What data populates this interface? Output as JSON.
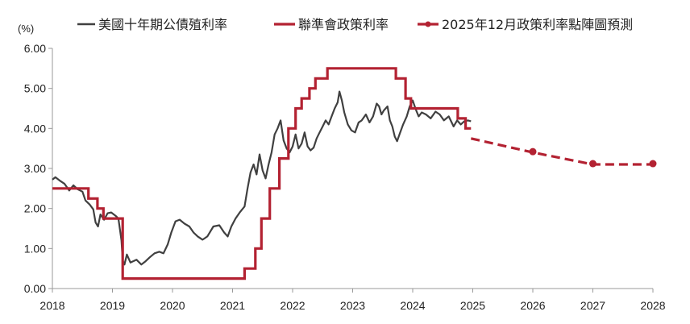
{
  "chart_data": {
    "type": "line",
    "ylabel": "(%)",
    "ylim": [
      0,
      6
    ],
    "xlim": [
      2018,
      2028
    ],
    "y_ticks": [
      "0.00",
      "1.00",
      "2.00",
      "3.00",
      "4.00",
      "5.00",
      "6.00"
    ],
    "x_ticks": [
      "2018",
      "2019",
      "2020",
      "2021",
      "2022",
      "2023",
      "2024",
      "2025",
      "2026",
      "2027",
      "2028"
    ],
    "legend_position": "top",
    "grid": false,
    "series": [
      {
        "name": "美國十年期公債殖利率",
        "style": "solid-thin",
        "color": "#404040",
        "points": [
          [
            2018.0,
            2.72
          ],
          [
            2018.05,
            2.78
          ],
          [
            2018.12,
            2.7
          ],
          [
            2018.2,
            2.62
          ],
          [
            2018.28,
            2.45
          ],
          [
            2018.35,
            2.58
          ],
          [
            2018.42,
            2.48
          ],
          [
            2018.5,
            2.42
          ],
          [
            2018.55,
            2.2
          ],
          [
            2018.62,
            2.1
          ],
          [
            2018.68,
            1.98
          ],
          [
            2018.72,
            1.65
          ],
          [
            2018.76,
            1.55
          ],
          [
            2018.8,
            1.85
          ],
          [
            2018.86,
            1.72
          ],
          [
            2018.92,
            1.88
          ],
          [
            2018.98,
            1.9
          ],
          [
            2019.05,
            1.82
          ],
          [
            2019.1,
            1.75
          ],
          [
            2019.15,
            1.2
          ],
          [
            2019.17,
            0.7
          ],
          [
            2019.2,
            0.6
          ],
          [
            2019.24,
            0.85
          ],
          [
            2019.3,
            0.65
          ],
          [
            2019.4,
            0.72
          ],
          [
            2019.48,
            0.6
          ],
          [
            2019.55,
            0.68
          ],
          [
            2019.62,
            0.78
          ],
          [
            2019.7,
            0.88
          ],
          [
            2019.78,
            0.92
          ],
          [
            2019.85,
            0.88
          ],
          [
            2019.92,
            1.1
          ],
          [
            2019.98,
            1.4
          ],
          [
            2020.05,
            1.68
          ],
          [
            2020.12,
            1.72
          ],
          [
            2020.2,
            1.62
          ],
          [
            2020.28,
            1.55
          ],
          [
            2020.35,
            1.4
          ],
          [
            2020.42,
            1.3
          ],
          [
            2020.5,
            1.22
          ],
          [
            2020.58,
            1.3
          ],
          [
            2020.68,
            1.55
          ],
          [
            2020.78,
            1.58
          ],
          [
            2020.86,
            1.4
          ],
          [
            2020.92,
            1.3
          ],
          [
            2020.98,
            1.55
          ],
          [
            2021.05,
            1.75
          ],
          [
            2021.12,
            1.9
          ],
          [
            2021.2,
            2.05
          ],
          [
            2021.25,
            2.5
          ],
          [
            2021.3,
            2.9
          ],
          [
            2021.35,
            3.1
          ],
          [
            2021.4,
            2.85
          ],
          [
            2021.45,
            3.35
          ],
          [
            2021.5,
            2.95
          ],
          [
            2021.55,
            2.75
          ],
          [
            2021.6,
            3.1
          ],
          [
            2021.65,
            3.4
          ],
          [
            2021.7,
            3.85
          ],
          [
            2021.75,
            4.0
          ],
          [
            2021.8,
            4.2
          ],
          [
            2021.85,
            3.7
          ],
          [
            2021.9,
            3.5
          ],
          [
            2021.95,
            3.4
          ],
          [
            2022.0,
            3.55
          ],
          [
            2022.05,
            3.85
          ],
          [
            2022.1,
            3.5
          ],
          [
            2022.15,
            3.62
          ],
          [
            2022.2,
            3.9
          ],
          [
            2022.25,
            3.55
          ],
          [
            2022.3,
            3.45
          ],
          [
            2022.35,
            3.52
          ],
          [
            2022.4,
            3.75
          ],
          [
            2022.45,
            3.9
          ],
          [
            2022.5,
            4.05
          ],
          [
            2022.55,
            4.2
          ],
          [
            2022.6,
            4.1
          ],
          [
            2022.65,
            4.3
          ],
          [
            2022.7,
            4.5
          ],
          [
            2022.75,
            4.65
          ],
          [
            2022.78,
            4.92
          ],
          [
            2022.82,
            4.7
          ],
          [
            2022.86,
            4.4
          ],
          [
            2022.92,
            4.1
          ],
          [
            2022.98,
            3.95
          ],
          [
            2023.04,
            3.9
          ],
          [
            2023.1,
            4.15
          ],
          [
            2023.15,
            4.2
          ],
          [
            2023.22,
            4.35
          ],
          [
            2023.28,
            4.15
          ],
          [
            2023.34,
            4.3
          ],
          [
            2023.4,
            4.62
          ],
          [
            2023.44,
            4.55
          ],
          [
            2023.48,
            4.35
          ],
          [
            2023.52,
            4.45
          ],
          [
            2023.58,
            4.55
          ],
          [
            2023.62,
            4.2
          ],
          [
            2023.66,
            4.05
          ],
          [
            2023.7,
            3.8
          ],
          [
            2023.74,
            3.68
          ],
          [
            2023.78,
            3.85
          ],
          [
            2023.84,
            4.1
          ],
          [
            2023.9,
            4.3
          ],
          [
            2023.95,
            4.55
          ],
          [
            2024.0,
            4.7
          ],
          [
            2024.05,
            4.48
          ],
          [
            2024.1,
            4.3
          ],
          [
            2024.15,
            4.4
          ],
          [
            2024.22,
            4.35
          ],
          [
            2024.3,
            4.25
          ],
          [
            2024.38,
            4.42
          ],
          [
            2024.45,
            4.35
          ],
          [
            2024.52,
            4.2
          ],
          [
            2024.6,
            4.3
          ],
          [
            2024.68,
            4.05
          ],
          [
            2024.74,
            4.2
          ],
          [
            2024.8,
            4.1
          ],
          [
            2024.86,
            4.18
          ],
          [
            2024.92,
            4.2
          ],
          [
            2024.97,
            4.18
          ]
        ]
      },
      {
        "name": "聯準會政策利率",
        "style": "step-thick",
        "color": "#b32232",
        "points": [
          [
            2018.0,
            2.5
          ],
          [
            2018.6,
            2.5
          ],
          [
            2018.6,
            2.25
          ],
          [
            2018.75,
            2.25
          ],
          [
            2018.75,
            2.0
          ],
          [
            2018.85,
            2.0
          ],
          [
            2018.85,
            1.75
          ],
          [
            2019.17,
            1.75
          ],
          [
            2019.17,
            0.25
          ],
          [
            2021.2,
            0.25
          ],
          [
            2021.2,
            0.5
          ],
          [
            2021.38,
            0.5
          ],
          [
            2021.38,
            1.0
          ],
          [
            2021.48,
            1.0
          ],
          [
            2021.48,
            1.75
          ],
          [
            2021.62,
            1.75
          ],
          [
            2021.62,
            2.5
          ],
          [
            2021.78,
            2.5
          ],
          [
            2021.78,
            3.25
          ],
          [
            2021.93,
            3.25
          ],
          [
            2021.93,
            4.0
          ],
          [
            2022.05,
            4.0
          ],
          [
            2022.05,
            4.5
          ],
          [
            2022.15,
            4.5
          ],
          [
            2022.15,
            4.75
          ],
          [
            2022.28,
            4.75
          ],
          [
            2022.28,
            5.0
          ],
          [
            2022.38,
            5.0
          ],
          [
            2022.38,
            5.25
          ],
          [
            2022.58,
            5.25
          ],
          [
            2022.58,
            5.5
          ],
          [
            2023.72,
            5.5
          ],
          [
            2023.72,
            5.25
          ],
          [
            2023.88,
            5.25
          ],
          [
            2023.88,
            4.75
          ],
          [
            2023.97,
            4.75
          ],
          [
            2023.97,
            4.5
          ],
          [
            2024.75,
            4.5
          ],
          [
            2024.75,
            4.25
          ],
          [
            2024.88,
            4.25
          ],
          [
            2024.88,
            4.0
          ],
          [
            2024.97,
            4.0
          ]
        ]
      },
      {
        "name": "2025年12月政策利率點陣圖預測",
        "style": "dashed-with-markers",
        "color": "#b32232",
        "points": [
          [
            2024.97,
            3.75
          ],
          [
            2026.0,
            3.4
          ],
          [
            2027.0,
            3.1
          ],
          [
            2028.0,
            3.1
          ]
        ],
        "marker_points": [
          [
            2026.0,
            3.42
          ],
          [
            2027.0,
            3.12
          ],
          [
            2028.0,
            3.12
          ]
        ]
      }
    ]
  }
}
